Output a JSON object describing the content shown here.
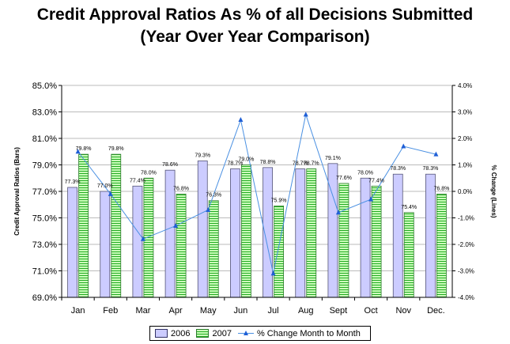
{
  "title_line1": "Credit Approval Ratios As % of all Decisions Submitted",
  "title_line2": "(Year Over Year Comparison)",
  "chart_data": {
    "type": "bar",
    "categories": [
      "Jan",
      "Feb",
      "Mar",
      "Apr",
      "May",
      "Jun",
      "Jul",
      "Aug",
      "Sept",
      "Oct",
      "Nov",
      "Dec."
    ],
    "series": [
      {
        "name": "2006",
        "type": "bar",
        "color": "#ccccff",
        "values": [
          77.3,
          77.0,
          77.4,
          78.6,
          79.3,
          78.7,
          78.8,
          78.7,
          79.1,
          78.0,
          78.3,
          78.3
        ],
        "labels": [
          "77.3%",
          "77.0%",
          "77.4%",
          "78.6%",
          "79.3%",
          "78.7%",
          "78.8%",
          "78.7%",
          "79.1%",
          "78.0%",
          "78.3%",
          "78.3%"
        ]
      },
      {
        "name": "2007",
        "type": "bar",
        "color": "#99ee66",
        "values": [
          79.8,
          79.8,
          78.0,
          76.8,
          76.3,
          79.0,
          75.9,
          78.7,
          77.6,
          77.4,
          75.4,
          76.8
        ],
        "labels": [
          "79.8%",
          "79.8%",
          "78.0%",
          "76.8%",
          "76.3%",
          "79.0%",
          "75.9%",
          "78.7%",
          "77.6%",
          "77.4%",
          "75.4%",
          "76.8%"
        ]
      },
      {
        "name": "% Change Month to Month",
        "type": "line",
        "axis": "right",
        "color": "#1f5fd6",
        "values": [
          1.5,
          -0.1,
          -1.8,
          -1.3,
          -0.7,
          2.7,
          -3.1,
          2.9,
          -0.8,
          -0.3,
          1.7,
          1.4
        ]
      }
    ],
    "ylabel": "Credit Approval Ratios (Bars)",
    "ylabel_right": "% Change (Lines)",
    "ylim": [
      69.0,
      85.0
    ],
    "yticks": [
      "69.0%",
      "71.0%",
      "73.0%",
      "75.0%",
      "77.0%",
      "79.0%",
      "81.0%",
      "83.0%",
      "85.0%"
    ],
    "ylim_right": [
      -4.0,
      4.0
    ],
    "yticks_right": [
      "-4.0%",
      "-3.0%",
      "-2.0%",
      "-1.0%",
      "0.0%",
      "1.0%",
      "2.0%",
      "3.0%",
      "4.0%"
    ],
    "grid": true,
    "legend_position": "bottom"
  },
  "legend": {
    "label_2006": "2006",
    "label_2007": "2007",
    "label_line": "% Change Month to Month"
  },
  "colors": {
    "bar_2006": "#ccccff",
    "bar_2007": "#99ee66",
    "line": "#1f5fd6"
  }
}
